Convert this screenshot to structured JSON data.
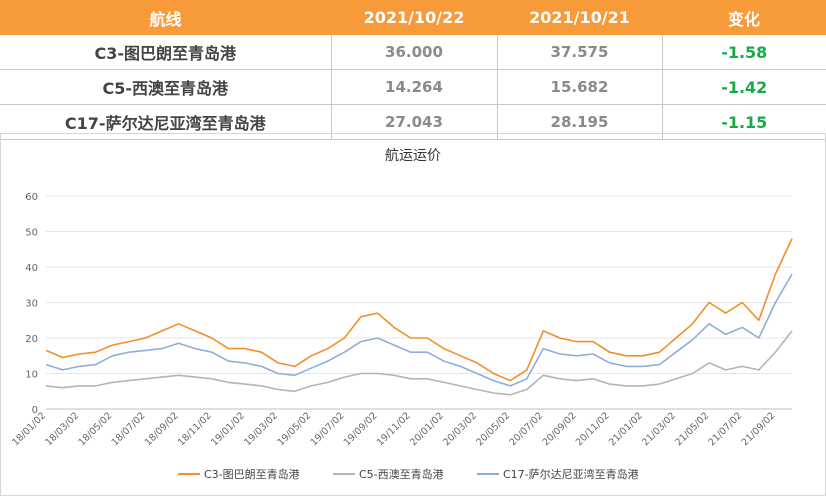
{
  "table": {
    "headers": [
      "航线",
      "2021/10/22",
      "2021/10/21",
      "变化"
    ],
    "rows": [
      {
        "route": "C3-图巴朗至青岛港",
        "v1": "36.000",
        "v2": "37.575",
        "change": "-1.58"
      },
      {
        "route": "C5-西澳至青岛港",
        "v1": "14.264",
        "v2": "15.682",
        "change": "-1.42"
      },
      {
        "route": "C17-萨尔达尼亚湾至青岛港",
        "v1": "27.043",
        "v2": "28.195",
        "change": "-1.15"
      }
    ]
  },
  "chart_data": {
    "type": "line",
    "title": "航运运价",
    "xlabel": "",
    "ylabel": "",
    "ylim": [
      0,
      60
    ],
    "yticks": [
      "0",
      "10",
      "20",
      "30",
      "40",
      "50",
      "60"
    ],
    "x_tick_labels": [
      "18/01/02",
      "18/03/02",
      "18/05/02",
      "18/07/02",
      "18/09/02",
      "18/11/02",
      "19/01/02",
      "19/03/02",
      "19/05/02",
      "19/07/02",
      "19/09/02",
      "19/11/02",
      "20/01/02",
      "20/03/02",
      "20/05/02",
      "20/07/02",
      "20/09/02",
      "20/11/02",
      "21/01/02",
      "21/03/02",
      "21/05/02",
      "21/07/02",
      "21/09/02"
    ],
    "x": [
      "18/01",
      "18/02",
      "18/03",
      "18/04",
      "18/05",
      "18/06",
      "18/07",
      "18/08",
      "18/09",
      "18/10",
      "18/11",
      "18/12",
      "19/01",
      "19/02",
      "19/03",
      "19/04",
      "19/05",
      "19/06",
      "19/07",
      "19/08",
      "19/09",
      "19/10",
      "19/11",
      "19/12",
      "20/01",
      "20/02",
      "20/03",
      "20/04",
      "20/05",
      "20/06",
      "20/07",
      "20/08",
      "20/09",
      "20/10",
      "20/11",
      "20/12",
      "21/01",
      "21/02",
      "21/03",
      "21/04",
      "21/05",
      "21/06",
      "21/07",
      "21/08",
      "21/09",
      "21/10"
    ],
    "legend_position": "bottom",
    "grid": "horizontal",
    "series": [
      {
        "name": "C3-图巴朗至青岛港",
        "color": "#f28e2b",
        "values": [
          16.5,
          14.5,
          15.5,
          16,
          18,
          19,
          20,
          22,
          24,
          22,
          20,
          17,
          17,
          16,
          13,
          12,
          15,
          17,
          20,
          26,
          27,
          23,
          20,
          20,
          17,
          15,
          13,
          10,
          8,
          11,
          22,
          20,
          19,
          19,
          16,
          15,
          15,
          16,
          20,
          24,
          30,
          27,
          30,
          25,
          38,
          48
        ]
      },
      {
        "name": "C5-西澳至青岛港",
        "color": "#b4b4b4",
        "values": [
          6.5,
          6,
          6.5,
          6.5,
          7.5,
          8,
          8.5,
          9,
          9.5,
          9,
          8.5,
          7.5,
          7,
          6.5,
          5.5,
          5,
          6.5,
          7.5,
          9,
          10,
          10,
          9.5,
          8.5,
          8.5,
          7.5,
          6.5,
          5.5,
          4.5,
          4,
          5.5,
          9.5,
          8.5,
          8,
          8.5,
          7,
          6.5,
          6.5,
          7,
          8.5,
          10,
          13,
          11,
          12,
          11,
          16,
          22
        ]
      },
      {
        "name": "C17-萨尔达尼亚湾至青岛港",
        "color": "#8eaed8",
        "values": [
          12.5,
          11,
          12,
          12.5,
          15,
          16,
          16.5,
          17,
          18.5,
          17,
          16,
          13.5,
          13,
          12,
          10,
          9.5,
          11.5,
          13.5,
          16,
          19,
          20,
          18,
          16,
          16,
          13.5,
          12,
          10,
          8,
          6.5,
          8.5,
          17,
          15.5,
          15,
          15.5,
          13,
          12,
          12,
          12.5,
          16,
          19.5,
          24,
          21,
          23,
          20,
          30,
          38
        ]
      }
    ]
  }
}
